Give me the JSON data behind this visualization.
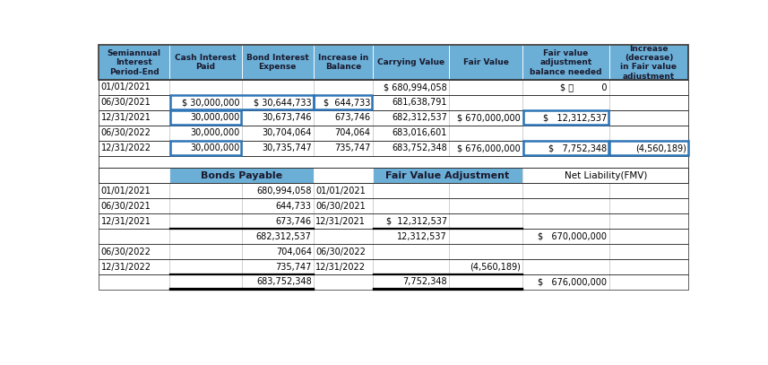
{
  "header_bg": "#6baed6",
  "header_text_color": "#1a1a2e",
  "white": "#ffffff",
  "border_dark": "#333333",
  "border_light": "#999999",
  "outline_blue": "#2e75b6",
  "fig_bg": "#ffffff",
  "top_headers": [
    "Semiannual\nInterest\nPeriod-End",
    "Cash Interest\nPaid",
    "Bond Interest\nExpense",
    "Increase in\nBalance",
    "Carrying Value",
    "Fair Value",
    "Fair value\nadjustment\nbalance needed",
    "Increase\n(decrease)\nin Fair value\nadjustment"
  ],
  "top_rows": [
    [
      "01/01/2021",
      "",
      "",
      "",
      "$ 680,994,058",
      "",
      "$",
      "0",
      ""
    ],
    [
      "06/30/2021",
      "$  30,000,000",
      "$  30,644,733",
      "$    644,733",
      "681,638,791",
      "",
      "",
      "",
      ""
    ],
    [
      "12/31/2021",
      "30,000,000",
      "30,673,746",
      "673,746",
      "682,312,537",
      "$ 670,000,000",
      "$",
      "12,312,537",
      ""
    ],
    [
      "06/30/2022",
      "30,000,000",
      "30,704,064",
      "704,064",
      "683,016,601",
      "",
      "",
      "",
      ""
    ],
    [
      "12/31/2022",
      "30,000,000",
      "30,735,747",
      "735,747",
      "683,752,348",
      "$ 676,000,000",
      "$",
      "7,752,348",
      "(4,560,189)"
    ]
  ],
  "bottom_rows": [
    [
      "01/01/2021",
      "",
      "680,994,058",
      "01/01/2021",
      "",
      "",
      "",
      ""
    ],
    [
      "06/30/2021",
      "",
      "644,733",
      "06/30/2021",
      "",
      "",
      "",
      ""
    ],
    [
      "12/31/2021",
      "",
      "673,746",
      "12/31/2021",
      "$  12,312,537",
      "",
      "",
      ""
    ],
    [
      "",
      "",
      "682,312,537",
      "",
      "12,312,537",
      "",
      "$    670,000,000",
      ""
    ],
    [
      "06/30/2022",
      "",
      "704,064",
      "06/30/2022",
      "",
      "",
      "",
      ""
    ],
    [
      "12/31/2022",
      "",
      "735,747",
      "12/31/2022",
      "",
      "(4,560,189)",
      "",
      ""
    ],
    [
      "",
      "",
      "683,752,348",
      "",
      "7,752,348",
      "",
      "$    676,000,000",
      ""
    ]
  ]
}
